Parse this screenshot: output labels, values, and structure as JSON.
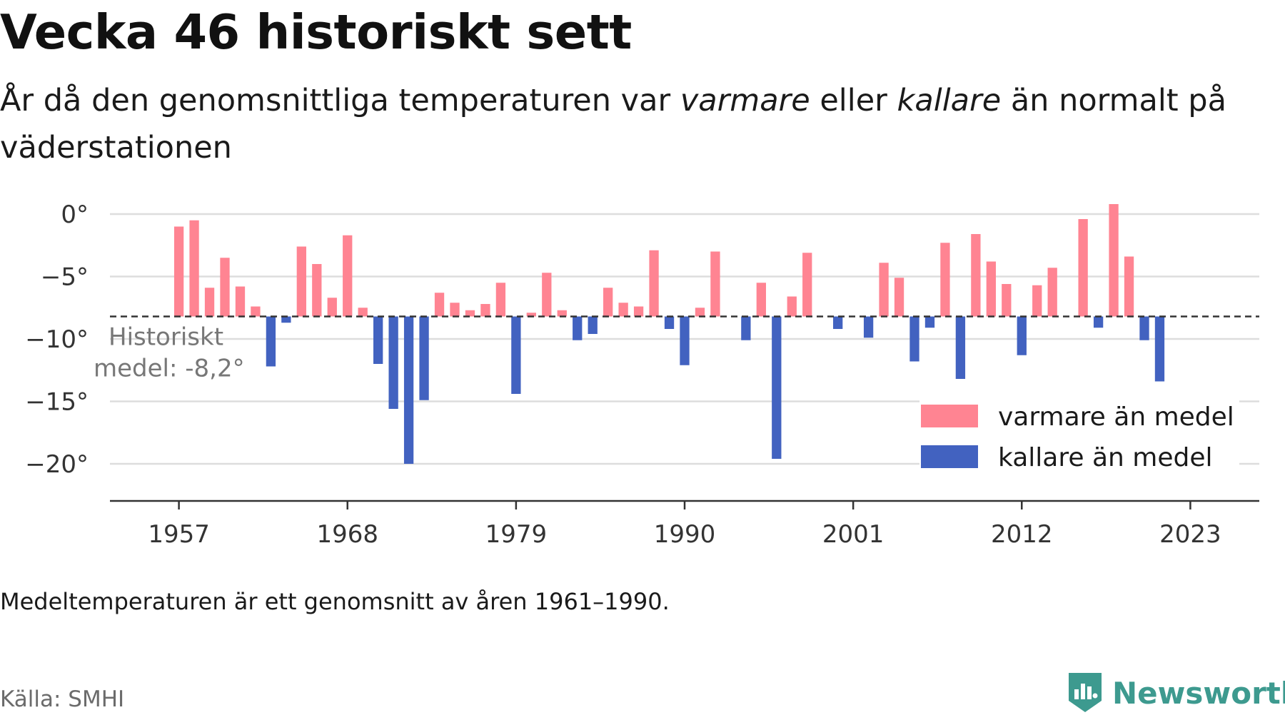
{
  "header": {
    "title": "Vecka 46 historiskt sett",
    "subtitle_part1": "År då den genomsnittliga temperaturen var ",
    "subtitle_em1": "varmare",
    "subtitle_part2": " eller ",
    "subtitle_em2": "kallare",
    "subtitle_part3": " än normalt på väderstationen"
  },
  "footer": {
    "note": "Medeltemperaturen är ett genomsnitt av åren 1961–1990.",
    "source": "Källa: SMHI",
    "brand": "Newsworthy"
  },
  "colors": {
    "warm": "#ff8492",
    "cold": "#4262c0",
    "grid": "#dddddd",
    "axis": "#333333",
    "brand": "#3d9a8f"
  },
  "icons": {
    "brand_logo": "bar-chart-shield-icon"
  },
  "chart_data": {
    "type": "bar",
    "baseline": -8.2,
    "baseline_label_line1": "Historiskt",
    "baseline_label_line2": "medel: -8,2°",
    "ylim": [
      -22,
      1.2
    ],
    "xlim": [
      1952.5,
      2027.5
    ],
    "yticks": [
      0,
      -5,
      -10,
      -15,
      -20
    ],
    "ytick_labels": [
      "0°",
      "−5°",
      "−10°",
      "−15°",
      "−20°"
    ],
    "xticks": [
      1957,
      1968,
      1979,
      1990,
      2001,
      2012,
      2023
    ],
    "xtick_labels": [
      "1957",
      "1968",
      "1979",
      "1990",
      "2001",
      "2012",
      "2023"
    ],
    "legend": {
      "position": "bottom-right",
      "warm_label": "varmare än medel",
      "cold_label": "kallare än medel"
    },
    "x": [
      1957,
      1958,
      1959,
      1960,
      1961,
      1962,
      1963,
      1964,
      1965,
      1966,
      1967,
      1968,
      1969,
      1970,
      1971,
      1972,
      1973,
      1974,
      1975,
      1976,
      1977,
      1978,
      1979,
      1980,
      1981,
      1982,
      1983,
      1984,
      1985,
      1986,
      1987,
      1988,
      1989,
      1990,
      1991,
      1992,
      1993,
      1994,
      1995,
      1996,
      1997,
      1998,
      1999,
      2000,
      2001,
      2002,
      2003,
      2004,
      2005,
      2006,
      2007,
      2008,
      2009,
      2010,
      2011,
      2012,
      2013,
      2014,
      2015,
      2016,
      2017,
      2018,
      2019,
      2020,
      2021,
      2022,
      2023
    ],
    "values": [
      -1.0,
      -0.5,
      -5.9,
      -3.5,
      -5.8,
      -7.4,
      -12.2,
      -8.7,
      -2.6,
      -4.0,
      -6.7,
      -1.7,
      -7.5,
      -12.0,
      -15.6,
      -20.0,
      -14.9,
      -6.3,
      -7.1,
      -7.7,
      -7.2,
      -5.5,
      -14.4,
      -7.9,
      -4.7,
      -7.7,
      -10.1,
      -9.6,
      -5.9,
      -7.1,
      -7.4,
      -2.9,
      -9.2,
      -12.1,
      -7.5,
      -3.0,
      -8.2,
      -10.1,
      -5.5,
      -19.6,
      -6.6,
      -3.1,
      -8.2,
      -9.2,
      -8.2,
      -9.9,
      -3.9,
      -5.1,
      -11.8,
      -9.1,
      -2.3,
      -13.2,
      -1.6,
      -3.8,
      -5.6,
      -11.3,
      -5.7,
      -4.3,
      -8.2,
      -0.4,
      -9.1,
      0.8,
      -3.4,
      -10.1,
      -13.4,
      -8.2,
      -8.2
    ]
  }
}
